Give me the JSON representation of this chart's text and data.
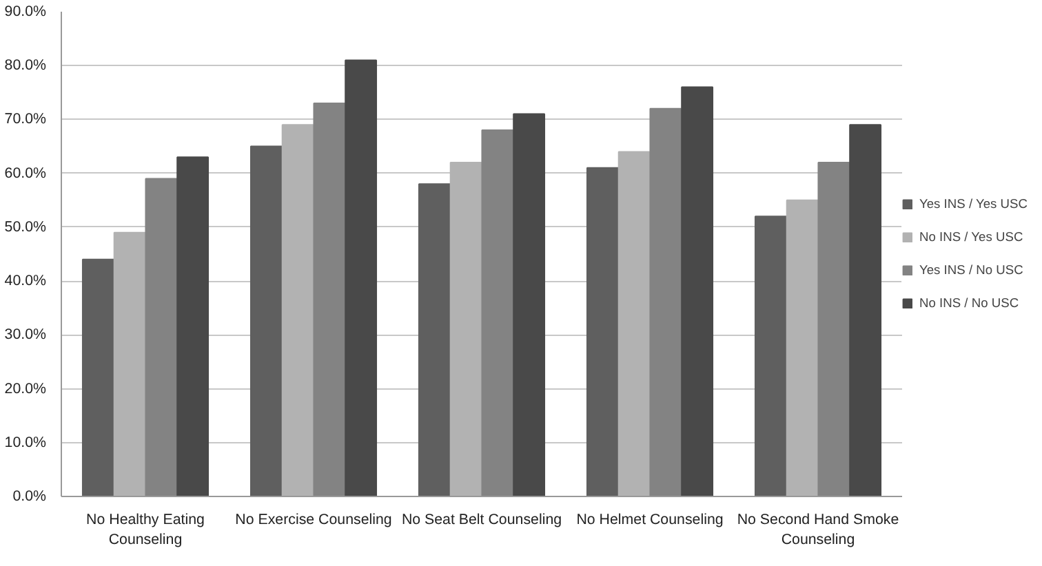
{
  "chart_data": {
    "type": "bar",
    "categories": [
      "No Healthy Eating Counseling",
      "No Exercise Counseling",
      "No Seat Belt Counseling",
      "No Helmet Counseling",
      "No Second Hand Smoke Counseling"
    ],
    "series": [
      {
        "name": "Yes INS / Yes USC",
        "color": "#5f5f5f",
        "values": [
          44,
          65,
          58,
          61,
          52
        ]
      },
      {
        "name": "No INS / Yes USC",
        "color": "#b2b2b2",
        "values": [
          49,
          69,
          62,
          64,
          55
        ]
      },
      {
        "name": "Yes INS / No USC",
        "color": "#838383",
        "values": [
          59,
          73,
          68,
          72,
          62
        ]
      },
      {
        "name": "No INS / No USC",
        "color": "#494949",
        "values": [
          63,
          81,
          71,
          76,
          69
        ]
      }
    ],
    "ylim": [
      0,
      90
    ],
    "yticks": [
      {
        "value": 0,
        "label": "0.0%"
      },
      {
        "value": 10,
        "label": "10.0%"
      },
      {
        "value": 20,
        "label": "20.0%"
      },
      {
        "value": 30,
        "label": "30.0%"
      },
      {
        "value": 40,
        "label": "40.0%"
      },
      {
        "value": 50,
        "label": "50.0%"
      },
      {
        "value": 60,
        "label": "60.0%"
      },
      {
        "value": 70,
        "label": "70.0%"
      },
      {
        "value": 80,
        "label": "80.0%"
      },
      {
        "value": 90,
        "label": "90.0%"
      }
    ],
    "grid": "y",
    "legend": "right"
  }
}
